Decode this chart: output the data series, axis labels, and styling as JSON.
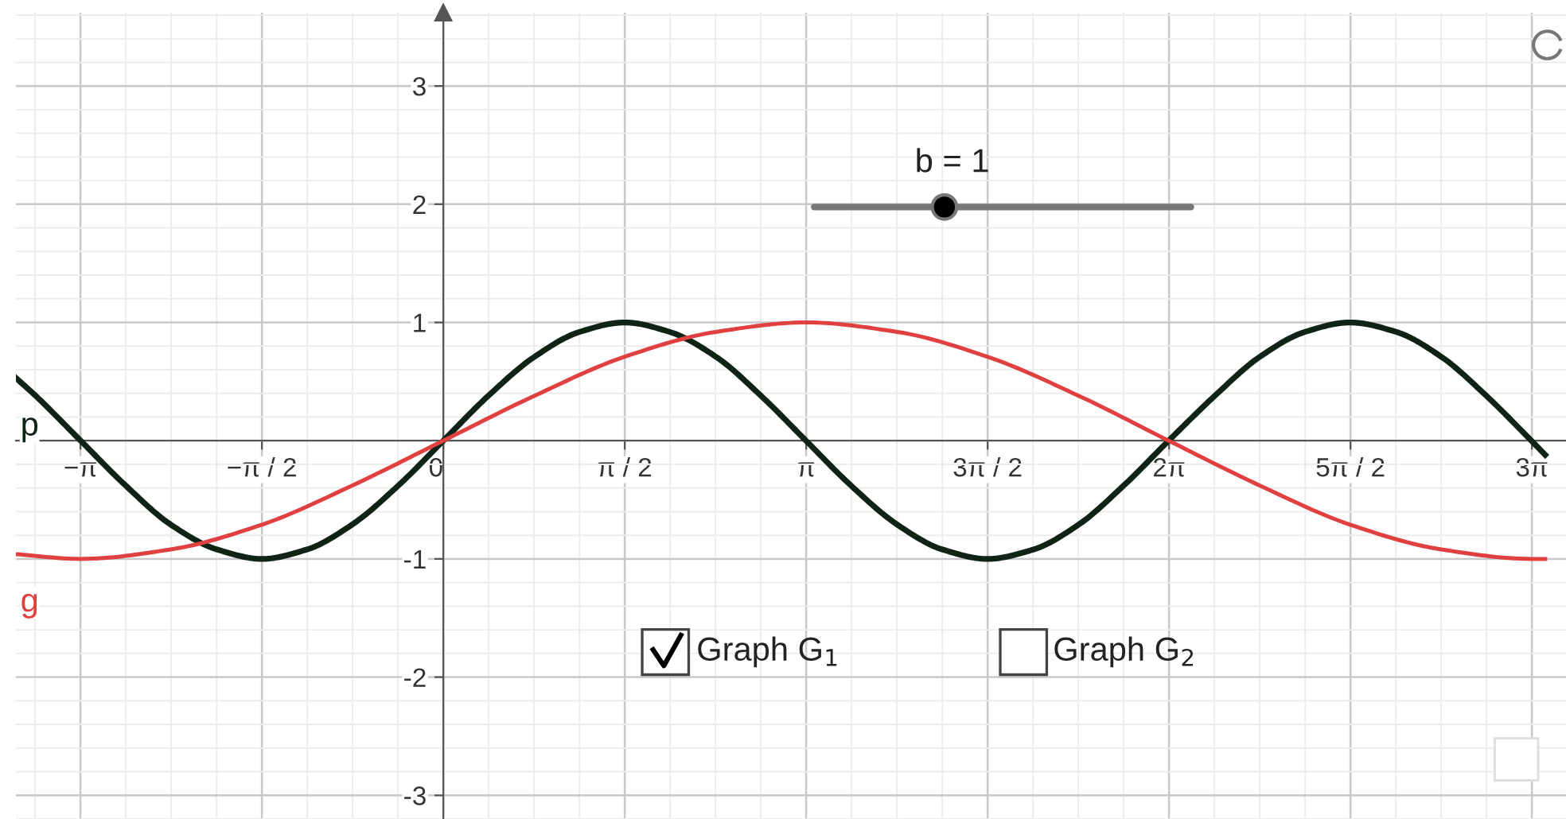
{
  "chart_data": {
    "type": "line",
    "xlim": [
      -3.7,
      9.72
    ],
    "ylim": [
      -3.2,
      3.62
    ],
    "xticks": [
      {
        "value": -3.1416,
        "label": "−π"
      },
      {
        "value": -1.5708,
        "label": "−π / 2"
      },
      {
        "value": 0,
        "label": "0"
      },
      {
        "value": 1.5708,
        "label": "π / 2"
      },
      {
        "value": 3.1416,
        "label": "π"
      },
      {
        "value": 4.7124,
        "label": "3π / 2"
      },
      {
        "value": 6.2832,
        "label": "2π"
      },
      {
        "value": 7.854,
        "label": "5π / 2"
      },
      {
        "value": 9.4248,
        "label": "3π"
      }
    ],
    "yticks": [
      -3,
      -2,
      -1,
      1,
      2,
      3
    ],
    "grid": true,
    "legend": false,
    "marker": "none",
    "line_style": "solid",
    "series": [
      {
        "name": "p",
        "color": "#0f2415",
        "x": [
          -3.7,
          -3.53,
          -3.14,
          -2.75,
          -2.36,
          -1.96,
          -1.57,
          -1.18,
          -0.79,
          -0.39,
          0,
          0.39,
          0.79,
          1.18,
          1.57,
          1.96,
          2.36,
          2.75,
          3.14,
          3.53,
          3.93,
          4.32,
          4.71,
          5.11,
          5.5,
          5.89,
          6.28,
          6.68,
          7.07,
          7.46,
          7.85,
          8.25,
          8.64,
          9.03,
          9.42,
          9.54
        ],
        "values": [
          0.53,
          0.38,
          0,
          -0.38,
          -0.71,
          -0.92,
          -1,
          -0.92,
          -0.71,
          -0.38,
          0,
          0.38,
          0.71,
          0.92,
          1,
          0.92,
          0.71,
          0.38,
          0,
          -0.38,
          -0.71,
          -0.92,
          -1,
          -0.92,
          -0.71,
          -0.38,
          0,
          0.38,
          0.71,
          0.92,
          1,
          0.92,
          0.71,
          0.38,
          0,
          -0.12
        ]
      },
      {
        "name": "g",
        "color": "#e0403f",
        "x": [
          -3.7,
          -3.14,
          -2.36,
          -1.57,
          -0.79,
          0,
          0.79,
          1.57,
          2.36,
          3.14,
          3.93,
          4.71,
          5.5,
          6.28,
          7.07,
          7.85,
          8.64,
          9.42,
          9.54
        ],
        "values": [
          -0.96,
          -1,
          -0.92,
          -0.71,
          -0.38,
          0,
          0.38,
          0.71,
          0.92,
          1,
          0.92,
          0.71,
          0.38,
          0,
          -0.38,
          -0.71,
          -0.92,
          -1,
          -1
        ]
      }
    ],
    "annotations": [
      "b = 1",
      "Graph G$_{1}$",
      "Graph G$_{2}$"
    ]
  }
}
